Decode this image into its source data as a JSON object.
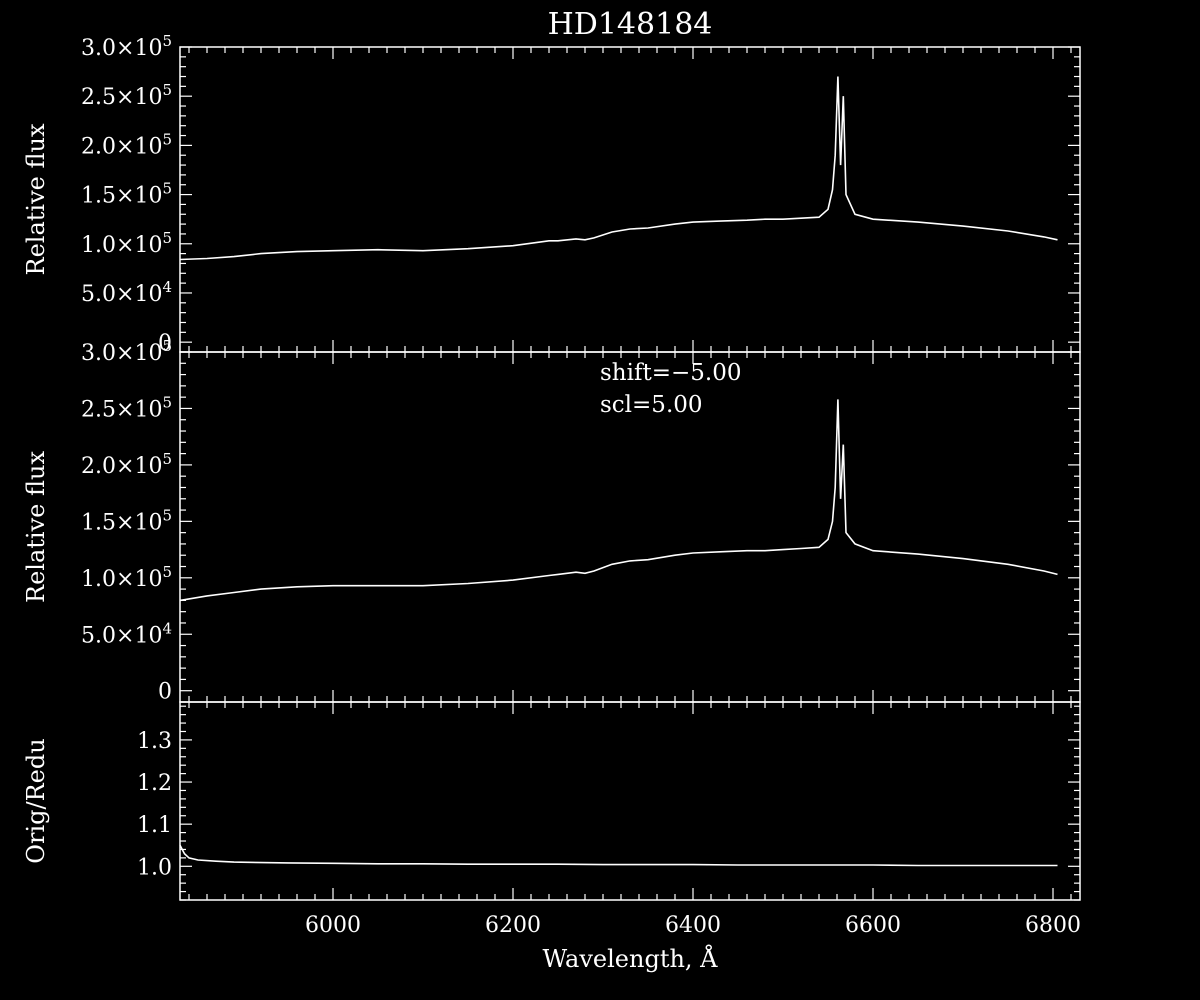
{
  "chart_data": {
    "type": "line",
    "title": "HD148184",
    "xlabel": "Wavelength, Å",
    "xlim": [
      5830,
      6830
    ],
    "xticks": [
      6000,
      6200,
      6400,
      6600,
      6800
    ],
    "panels": [
      {
        "ylabel": "Relative flux",
        "ylim": [
          -10000,
          300000
        ],
        "yticks": [
          {
            "value": 0,
            "mant": "0",
            "exp": ""
          },
          {
            "value": 50000,
            "mant": "5.0×10",
            "exp": "4"
          },
          {
            "value": 100000,
            "mant": "1.0×10",
            "exp": "5"
          },
          {
            "value": 150000,
            "mant": "1.5×10",
            "exp": "5"
          },
          {
            "value": 200000,
            "mant": "2.0×10",
            "exp": "5"
          },
          {
            "value": 250000,
            "mant": "2.5×10",
            "exp": "5"
          },
          {
            "value": 300000,
            "mant": "3.0×10",
            "exp": "5"
          }
        ],
        "series": [
          {
            "x": [
              5830,
              5860,
              5890,
              5920,
              5960,
              6000,
              6050,
              6100,
              6150,
              6200,
              6240,
              6250,
              6270,
              6280,
              6290,
              6310,
              6330,
              6350,
              6380,
              6400,
              6430,
              6460,
              6480,
              6500,
              6520,
              6540,
              6550,
              6555,
              6558,
              6561,
              6564,
              6567,
              6570,
              6580,
              6600,
              6650,
              6700,
              6750,
              6790,
              6805
            ],
            "y": [
              84000,
              85000,
              87000,
              90000,
              92000,
              93000,
              94000,
              93000,
              95000,
              98000,
              103000,
              103000,
              105000,
              104000,
              106000,
              112000,
              115000,
              116000,
              120000,
              122000,
              123000,
              124000,
              125000,
              125000,
              126000,
              127000,
              135000,
              155000,
              190000,
              270000,
              180000,
              250000,
              150000,
              130000,
              125000,
              122000,
              118000,
              113000,
              107000,
              104000
            ]
          }
        ]
      },
      {
        "ylabel": "Relative flux",
        "ylim": [
          -10000,
          300000
        ],
        "annotations": [
          "shift=−5.00",
          "scl=5.00"
        ],
        "yticks": [
          {
            "value": 0,
            "mant": "0",
            "exp": ""
          },
          {
            "value": 50000,
            "mant": "5.0×10",
            "exp": "4"
          },
          {
            "value": 100000,
            "mant": "1.0×10",
            "exp": "5"
          },
          {
            "value": 150000,
            "mant": "1.5×10",
            "exp": "5"
          },
          {
            "value": 200000,
            "mant": "2.0×10",
            "exp": "5"
          },
          {
            "value": 250000,
            "mant": "2.5×10",
            "exp": "5"
          },
          {
            "value": 300000,
            "mant": "3.0×10",
            "exp": "5"
          }
        ],
        "series": [
          {
            "x": [
              5830,
              5860,
              5890,
              5920,
              5960,
              6000,
              6050,
              6100,
              6150,
              6200,
              6240,
              6250,
              6270,
              6280,
              6290,
              6310,
              6330,
              6350,
              6380,
              6400,
              6430,
              6460,
              6480,
              6500,
              6520,
              6540,
              6550,
              6555,
              6558,
              6561,
              6564,
              6567,
              6570,
              6580,
              6600,
              6650,
              6700,
              6750,
              6790,
              6805
            ],
            "y": [
              80000,
              84000,
              87000,
              90000,
              92000,
              93000,
              93000,
              93000,
              95000,
              98000,
              102000,
              103000,
              105000,
              104000,
              106000,
              112000,
              115000,
              116000,
              120000,
              122000,
              123000,
              124000,
              124000,
              125000,
              126000,
              127000,
              134000,
              150000,
              180000,
              258000,
              170000,
              218000,
              140000,
              130000,
              124000,
              121000,
              117000,
              112000,
              106000,
              103000
            ]
          }
        ]
      },
      {
        "ylabel": "Orig/Redu",
        "ylim": [
          0.92,
          1.39
        ],
        "yticks": [
          {
            "value": 1.0,
            "mant": "1.0",
            "exp": ""
          },
          {
            "value": 1.1,
            "mant": "1.1",
            "exp": ""
          },
          {
            "value": 1.2,
            "mant": "1.2",
            "exp": ""
          },
          {
            "value": 1.3,
            "mant": "1.3",
            "exp": ""
          }
        ],
        "series": [
          {
            "x": [
              5830,
              5835,
              5840,
              5850,
              5870,
              5890,
              5950,
              6000,
              6050,
              6100,
              6150,
              6200,
              6250,
              6300,
              6350,
              6400,
              6450,
              6500,
              6550,
              6600,
              6650,
              6700,
              6750,
              6805
            ],
            "y": [
              1.05,
              1.03,
              1.02,
              1.015,
              1.012,
              1.01,
              1.008,
              1.007,
              1.006,
              1.006,
              1.005,
              1.005,
              1.005,
              1.004,
              1.004,
              1.004,
              1.003,
              1.003,
              1.003,
              1.003,
              1.002,
              1.002,
              1.002,
              1.002
            ]
          }
        ]
      }
    ]
  }
}
